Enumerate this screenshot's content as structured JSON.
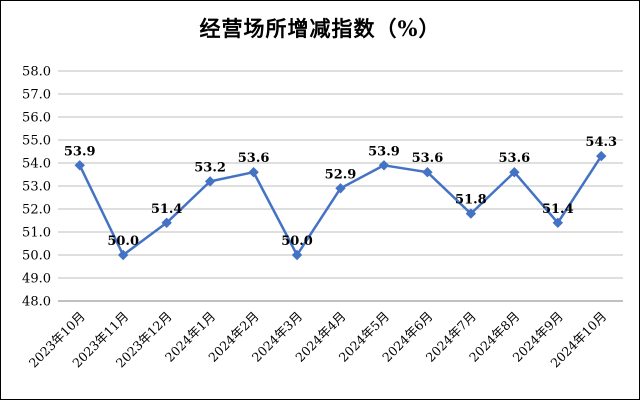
{
  "chart_data": {
    "type": "line",
    "title": "经营场所增减指数（%）",
    "categories": [
      "2023年10月",
      "2023年11月",
      "2023年12月",
      "2024年1月",
      "2024年2月",
      "2024年3月",
      "2024年4月",
      "2024年5月",
      "2024年6月",
      "2024年7月",
      "2024年8月",
      "2024年9月",
      "2024年10月"
    ],
    "values": [
      53.9,
      50.0,
      51.4,
      53.2,
      53.6,
      50.0,
      52.9,
      53.9,
      53.6,
      51.8,
      53.6,
      51.4,
      54.3
    ],
    "ylim": [
      48.0,
      58.0
    ],
    "ytick_step": 1.0,
    "ytick_decimals": 1,
    "grid": true,
    "legend": false,
    "line_color": "#4472C4",
    "marker": "diamond",
    "data_labels": true,
    "gridline_color": "#bfbfbf",
    "axis_color": "#808080",
    "label_color": "#000000"
  }
}
